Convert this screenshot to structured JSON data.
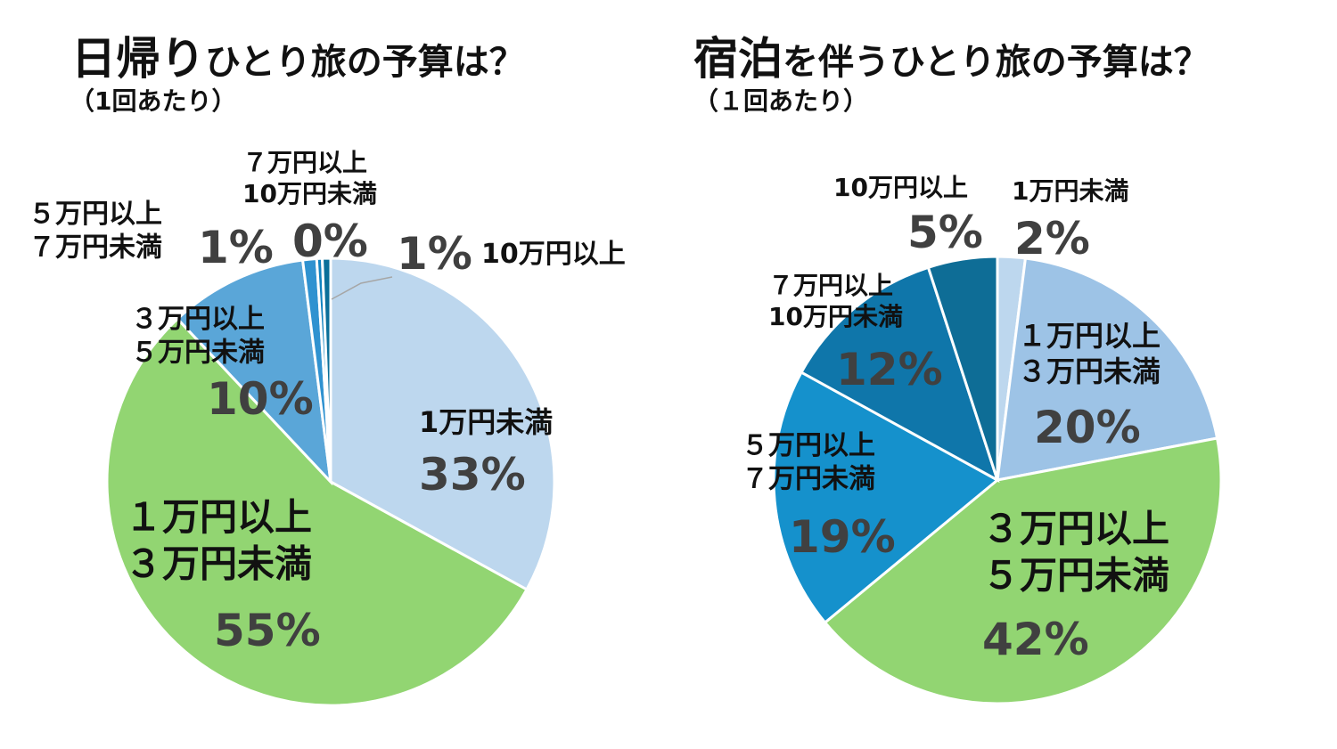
{
  "chart_data": [
    {
      "type": "pie",
      "title": "日帰りひとり旅の予算は？",
      "title_emphasis": "日帰り",
      "title_rest": "ひとり旅の予算は？",
      "subtitle": "（1回あたり）",
      "slices": [
        {
          "label_lines": [
            "1万円未満"
          ],
          "value": 33,
          "pct_label": "33%",
          "color": "#bdd7ee"
        },
        {
          "label_lines": [
            "１万円以上",
            "３万円未満"
          ],
          "value": 55,
          "pct_label": "55%",
          "color": "#92d572"
        },
        {
          "label_lines": [
            "３万円以上",
            "５万円未満"
          ],
          "value": 10,
          "pct_label": "10%",
          "color": "#5aa6d8"
        },
        {
          "label_lines": [
            "５万円以上",
            "７万円未満"
          ],
          "value": 1,
          "pct_label": "1%",
          "color": "#2f92d0"
        },
        {
          "label_lines": [
            "７万円以上",
            "10万円未満"
          ],
          "value": 0.4,
          "pct_label": "0%",
          "color": "#1083c0"
        },
        {
          "label_lines": [
            "10万円以上"
          ],
          "value": 0.6,
          "pct_label": "1%",
          "color": "#0b6f99"
        }
      ]
    },
    {
      "type": "pie",
      "title": "宿泊を伴うひとり旅の予算は？",
      "title_emphasis": "宿泊",
      "title_rest": "を伴うひとり旅の予算は？",
      "subtitle": "（１回あたり）",
      "slices": [
        {
          "label_lines": [
            "1万円未満"
          ],
          "value": 2,
          "pct_label": "2%",
          "color": "#bdd7ee"
        },
        {
          "label_lines": [
            "１万円以上",
            "３万円未満"
          ],
          "value": 20,
          "pct_label": "20%",
          "color": "#9dc3e6"
        },
        {
          "label_lines": [
            "３万円以上",
            "５万円未満"
          ],
          "value": 42,
          "pct_label": "42%",
          "color": "#92d572"
        },
        {
          "label_lines": [
            "５万円以上",
            "７万円未満"
          ],
          "value": 19,
          "pct_label": "19%",
          "color": "#1591cc"
        },
        {
          "label_lines": [
            "７万円以上",
            "10万円未満"
          ],
          "value": 12,
          "pct_label": "12%",
          "color": "#0f76aa"
        },
        {
          "label_lines": [
            "10万円以上"
          ],
          "value": 5,
          "pct_label": "5%",
          "color": "#0e6d96"
        }
      ]
    }
  ]
}
